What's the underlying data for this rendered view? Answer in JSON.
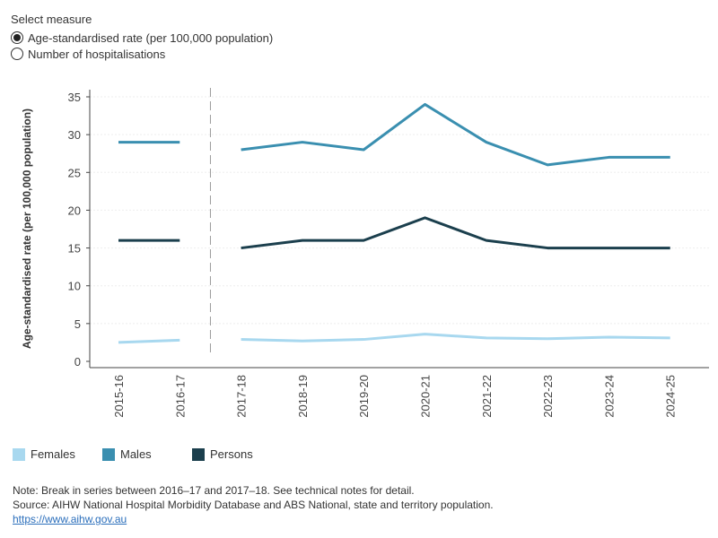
{
  "measure": {
    "title": "Select measure",
    "options": [
      {
        "label": "Age-standardised rate (per 100,000 population)",
        "selected": true
      },
      {
        "label": "Number of hospitalisations",
        "selected": false
      }
    ]
  },
  "colors": {
    "Females": "#a8d8ef",
    "Males": "#3a8fb0",
    "Persons": "#1b3f4d"
  },
  "chart_data": {
    "type": "line",
    "ylabel": "Age-standardised rate (per 100,000 population)",
    "xlabel": "",
    "ylim": [
      0,
      35
    ],
    "yticks": [
      0,
      5,
      10,
      15,
      20,
      25,
      30,
      35
    ],
    "categories": [
      "2015-16",
      "2016-17",
      "2017-18",
      "2018-19",
      "2019-20",
      "2020-21",
      "2021-22",
      "2022-23",
      "2023-24",
      "2024-25"
    ],
    "break_after": "2016-17",
    "series": [
      {
        "name": "Females",
        "values": [
          2.5,
          2.8,
          2.9,
          2.7,
          2.9,
          3.6,
          3.1,
          3.0,
          3.2,
          3.1
        ]
      },
      {
        "name": "Males",
        "values": [
          29,
          29,
          28,
          29,
          28,
          34,
          29,
          26,
          27,
          27
        ]
      },
      {
        "name": "Persons",
        "values": [
          16,
          16,
          15,
          16,
          16,
          19,
          16,
          15,
          15,
          15
        ]
      }
    ]
  },
  "legend": [
    "Females",
    "Males",
    "Persons"
  ],
  "notes": {
    "line1": "Note: Break in series between 2016–17 and 2017–18. See technical notes for detail.",
    "line2": "Source: AIHW National Hospital Morbidity Database and ABS National, state and territory population.",
    "link": "https://www.aihw.gov.au"
  }
}
